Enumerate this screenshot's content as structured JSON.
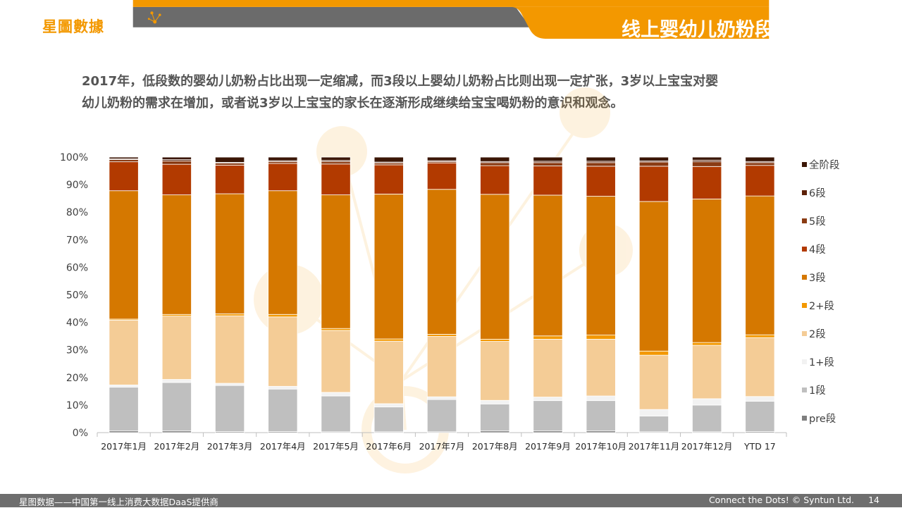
{
  "header": {
    "logo_text": "星圖數據",
    "title": "线上婴幼儿奶粉段数分布及走势"
  },
  "intro": {
    "line1": "2017年，低段数的婴幼儿奶粉占比出现一定缩减，而3段以上婴幼儿奶粉占比则出现一定扩张，3岁以上宝宝对婴",
    "line2": "幼儿奶粉的需求在增加，或者说3岁以上宝宝的家长在逐渐形成继续给宝宝喝奶粉的意识和观念。"
  },
  "footer": {
    "left": "星图数据——中国第一线上消费大数据DaaS提供商",
    "right": "Connect the Dots! © Syntun Ltd.",
    "page": "14"
  },
  "chart_data": {
    "type": "bar",
    "stacked": true,
    "percent": true,
    "categories": [
      "2017年1月",
      "2017年2月",
      "2017年3月",
      "2017年4月",
      "2017年5月",
      "2017年6月",
      "2017年7月",
      "2017年8月",
      "2017年9月",
      "2017年10月",
      "2017年11月",
      "2017年12月",
      "YTD 17"
    ],
    "y_ticks": [
      "0%",
      "10%",
      "20%",
      "30%",
      "40%",
      "50%",
      "60%",
      "70%",
      "80%",
      "90%",
      "100%"
    ],
    "ylim": [
      0,
      100
    ],
    "legend_position": "right",
    "series": [
      {
        "name": "pre段",
        "color": "#7f7f7f",
        "values": [
          0.6,
          0.6,
          0.4,
          0.4,
          0.3,
          0.3,
          0.3,
          0.6,
          0.6,
          0.6,
          0.3,
          0.3,
          0.4
        ]
      },
      {
        "name": "1段",
        "color": "#bfbfbf",
        "values": [
          15.9,
          17.6,
          16.7,
          15.4,
          13.0,
          9.0,
          11.7,
          9.8,
          11.0,
          11.0,
          5.7,
          9.7,
          11.0
        ]
      },
      {
        "name": "1+段",
        "color": "#f2f2f2",
        "values": [
          0.8,
          1.1,
          0.8,
          1.0,
          1.3,
          1.2,
          1.0,
          1.3,
          1.3,
          1.7,
          2.4,
          2.3,
          1.7
        ]
      },
      {
        "name": "2段",
        "color": "#f4cc96",
        "values": [
          23.5,
          23.0,
          24.5,
          25.2,
          22.5,
          22.7,
          21.9,
          21.4,
          21.0,
          20.6,
          19.7,
          19.4,
          21.4
        ]
      },
      {
        "name": "2+段",
        "color": "#f39800",
        "values": [
          0.4,
          0.6,
          0.7,
          0.9,
          0.7,
          0.8,
          0.8,
          0.8,
          1.2,
          1.5,
          1.5,
          1.0,
          1.0
        ]
      },
      {
        "name": "3段",
        "color": "#d57800",
        "values": [
          46.6,
          43.4,
          43.6,
          44.9,
          48.5,
          52.6,
          52.6,
          52.6,
          51.1,
          50.4,
          54.3,
          52.1,
          50.4
        ]
      },
      {
        "name": "4段",
        "color": "#b23a00",
        "values": [
          10.5,
          11.1,
          10.4,
          9.9,
          11.2,
          10.6,
          9.6,
          10.4,
          10.6,
          10.9,
          12.8,
          11.8,
          11.1
        ]
      },
      {
        "name": "5段",
        "color": "#8a3b13",
        "values": [
          0.8,
          1.2,
          0.7,
          0.7,
          0.9,
          0.7,
          0.5,
          1.1,
          1.2,
          1.3,
          1.5,
          1.7,
          1.0
        ]
      },
      {
        "name": "6段",
        "color": "#5c2108",
        "values": [
          0.3,
          0.5,
          0.3,
          0.3,
          0.4,
          0.3,
          0.3,
          0.4,
          0.5,
          0.5,
          0.4,
          0.6,
          0.4
        ]
      },
      {
        "name": "全阶段",
        "color": "#3b1606",
        "values": [
          0.6,
          0.9,
          1.9,
          1.3,
          1.2,
          1.8,
          1.3,
          1.6,
          1.5,
          1.5,
          1.4,
          1.1,
          1.6
        ]
      }
    ]
  }
}
